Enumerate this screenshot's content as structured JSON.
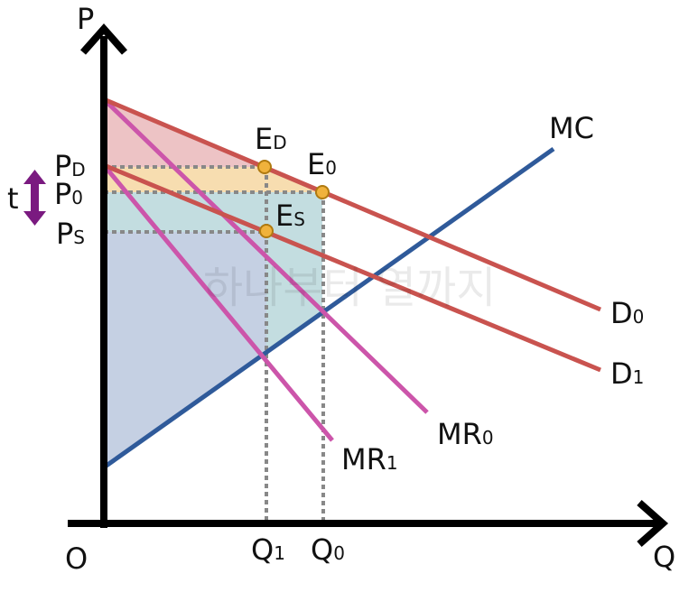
{
  "axes": {
    "y_label": "P",
    "x_label": "Q",
    "origin": "O"
  },
  "curves": {
    "mc": "MC",
    "d0": {
      "main": "D",
      "sub": "0"
    },
    "d1": {
      "main": "D",
      "sub": "1"
    },
    "mr0": {
      "main": "MR",
      "sub": "0"
    },
    "mr1": {
      "main": "MR",
      "sub": "1"
    }
  },
  "points": {
    "ed": {
      "main": "E",
      "sub": "D"
    },
    "e0": {
      "main": "E",
      "sub": "0"
    },
    "es": {
      "main": "E",
      "sub": "S"
    }
  },
  "prices": {
    "pd": {
      "main": "P",
      "sub": "D"
    },
    "p0": {
      "main": "P",
      "sub": "0"
    },
    "ps": {
      "main": "P",
      "sub": "S"
    },
    "tax": "t"
  },
  "quantities": {
    "q1": {
      "main": "Q",
      "sub": "1"
    },
    "q0": {
      "main": "Q",
      "sub": "0"
    }
  },
  "watermark": "하나부터 열까지"
}
